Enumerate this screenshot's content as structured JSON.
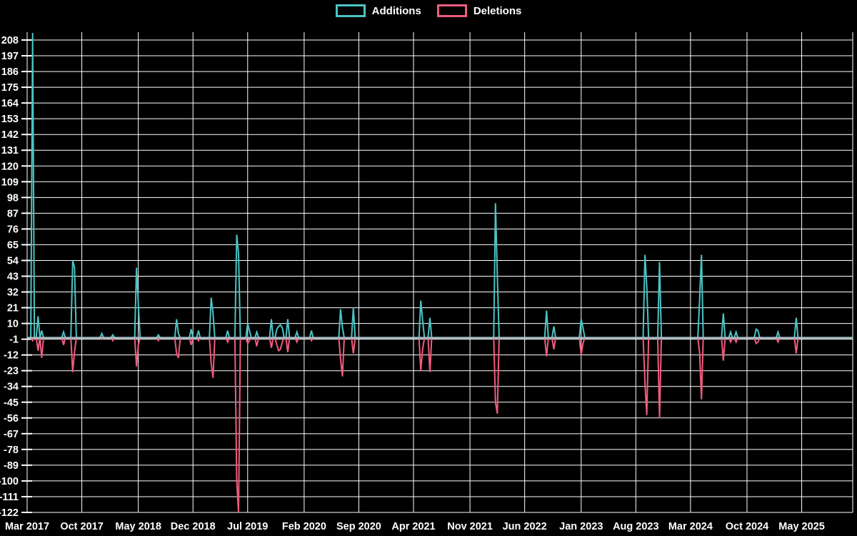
{
  "legend": {
    "items": [
      {
        "label": "Additions",
        "color": "#4cc3c3"
      },
      {
        "label": "Deletions",
        "color": "#f05c7e"
      }
    ]
  },
  "chart_data": {
    "type": "line",
    "legend_position": "top-center",
    "grid": true,
    "background": "#000000",
    "grid_color": "#ffffff",
    "baseline_color": "#a8bec6",
    "series": [
      {
        "name": "Additions",
        "color": "#4cc3c3"
      },
      {
        "name": "Deletions",
        "color": "#f05c7e"
      }
    ],
    "y_axis": {
      "min": -122,
      "max": 208,
      "tick_step": 11,
      "ticks": [
        208,
        197,
        186,
        175,
        164,
        153,
        142,
        131,
        120,
        109,
        98,
        87,
        76,
        65,
        54,
        43,
        32,
        21,
        10,
        -1,
        -12,
        -23,
        -34,
        -45,
        -56,
        -67,
        -78,
        -89,
        -100,
        -111,
        -122
      ]
    },
    "x_axis": {
      "total_weeks": 453,
      "labels": [
        {
          "label": "Mar 2017",
          "week": 0
        },
        {
          "label": "Oct 2017",
          "week": 30
        },
        {
          "label": "May 2018",
          "week": 61
        },
        {
          "label": "Dec 2018",
          "week": 91
        },
        {
          "label": "Jul 2019",
          "week": 121
        },
        {
          "label": "Feb 2020",
          "week": 152
        },
        {
          "label": "Sep 2020",
          "week": 182
        },
        {
          "label": "Apr 2021",
          "week": 212
        },
        {
          "label": "Nov 2021",
          "week": 243
        },
        {
          "label": "Jun 2022",
          "week": 273
        },
        {
          "label": "Jan 2023",
          "week": 304
        },
        {
          "label": "Aug 2023",
          "week": 334
        },
        {
          "label": "Mar 2024",
          "week": 364
        },
        {
          "label": "Oct 2024",
          "week": 395
        },
        {
          "label": "May 2025",
          "week": 425
        }
      ]
    },
    "default_additions": 0,
    "default_deletions": 0,
    "weekly_points": [
      {
        "week": 3,
        "additions": 213,
        "deletions": -2
      },
      {
        "week": 6,
        "additions": 15,
        "deletions": -9
      },
      {
        "week": 8,
        "additions": 5,
        "deletions": -14
      },
      {
        "week": 20,
        "additions": 4,
        "deletions": -5
      },
      {
        "week": 25,
        "additions": 54,
        "deletions": -24
      },
      {
        "week": 26,
        "additions": 49,
        "deletions": -10
      },
      {
        "week": 41,
        "additions": 3,
        "deletions": -1
      },
      {
        "week": 47,
        "additions": 2,
        "deletions": -2
      },
      {
        "week": 60,
        "additions": 49,
        "deletions": -20
      },
      {
        "week": 61,
        "additions": 23,
        "deletions": -5
      },
      {
        "week": 72,
        "additions": 2,
        "deletions": -2
      },
      {
        "week": 82,
        "additions": 13,
        "deletions": -11
      },
      {
        "week": 83,
        "additions": 3,
        "deletions": -14
      },
      {
        "week": 90,
        "additions": 6,
        "deletions": -5
      },
      {
        "week": 94,
        "additions": 5,
        "deletions": -2
      },
      {
        "week": 101,
        "additions": 28,
        "deletions": -18
      },
      {
        "week": 102,
        "additions": 17,
        "deletions": -28
      },
      {
        "week": 110,
        "additions": 5,
        "deletions": -3
      },
      {
        "week": 115,
        "additions": 72,
        "deletions": -100
      },
      {
        "week": 116,
        "additions": 59,
        "deletions": -122
      },
      {
        "week": 121,
        "additions": 10,
        "deletions": -4
      },
      {
        "week": 122,
        "additions": 5,
        "deletions": -2
      },
      {
        "week": 126,
        "additions": 4,
        "deletions": -6
      },
      {
        "week": 134,
        "additions": 13,
        "deletions": -7
      },
      {
        "week": 137,
        "additions": 6,
        "deletions": -5
      },
      {
        "week": 138,
        "additions": 8,
        "deletions": -9
      },
      {
        "week": 139,
        "additions": 9,
        "deletions": -8
      },
      {
        "week": 140,
        "additions": 7,
        "deletions": -3
      },
      {
        "week": 143,
        "additions": 13,
        "deletions": -10
      },
      {
        "week": 148,
        "additions": 4,
        "deletions": -3
      },
      {
        "week": 156,
        "additions": 5,
        "deletions": -2
      },
      {
        "week": 172,
        "additions": 20,
        "deletions": -15
      },
      {
        "week": 173,
        "additions": 7,
        "deletions": -27
      },
      {
        "week": 179,
        "additions": 21,
        "deletions": -11
      },
      {
        "week": 216,
        "additions": 26,
        "deletions": -23
      },
      {
        "week": 217,
        "additions": 12,
        "deletions": -8
      },
      {
        "week": 221,
        "additions": 14,
        "deletions": -24
      },
      {
        "week": 257,
        "additions": 94,
        "deletions": -45
      },
      {
        "week": 258,
        "additions": 43,
        "deletions": -53
      },
      {
        "week": 285,
        "additions": 19,
        "deletions": -13
      },
      {
        "week": 289,
        "additions": 8,
        "deletions": -8
      },
      {
        "week": 304,
        "additions": 13,
        "deletions": -12
      },
      {
        "week": 305,
        "additions": 7,
        "deletions": -4
      },
      {
        "week": 339,
        "additions": 58,
        "deletions": -31
      },
      {
        "week": 340,
        "additions": 36,
        "deletions": -54
      },
      {
        "week": 347,
        "additions": 53,
        "deletions": -56
      },
      {
        "week": 369,
        "additions": 26,
        "deletions": -10
      },
      {
        "week": 370,
        "additions": 58,
        "deletions": -43
      },
      {
        "week": 382,
        "additions": 17,
        "deletions": -16
      },
      {
        "week": 386,
        "additions": 4,
        "deletions": -3
      },
      {
        "week": 389,
        "additions": 4,
        "deletions": -3
      },
      {
        "week": 400,
        "additions": 6,
        "deletions": -4
      },
      {
        "week": 401,
        "additions": 5,
        "deletions": -3
      },
      {
        "week": 412,
        "additions": 4,
        "deletions": -3
      },
      {
        "week": 422,
        "additions": 14,
        "deletions": -11
      }
    ]
  }
}
